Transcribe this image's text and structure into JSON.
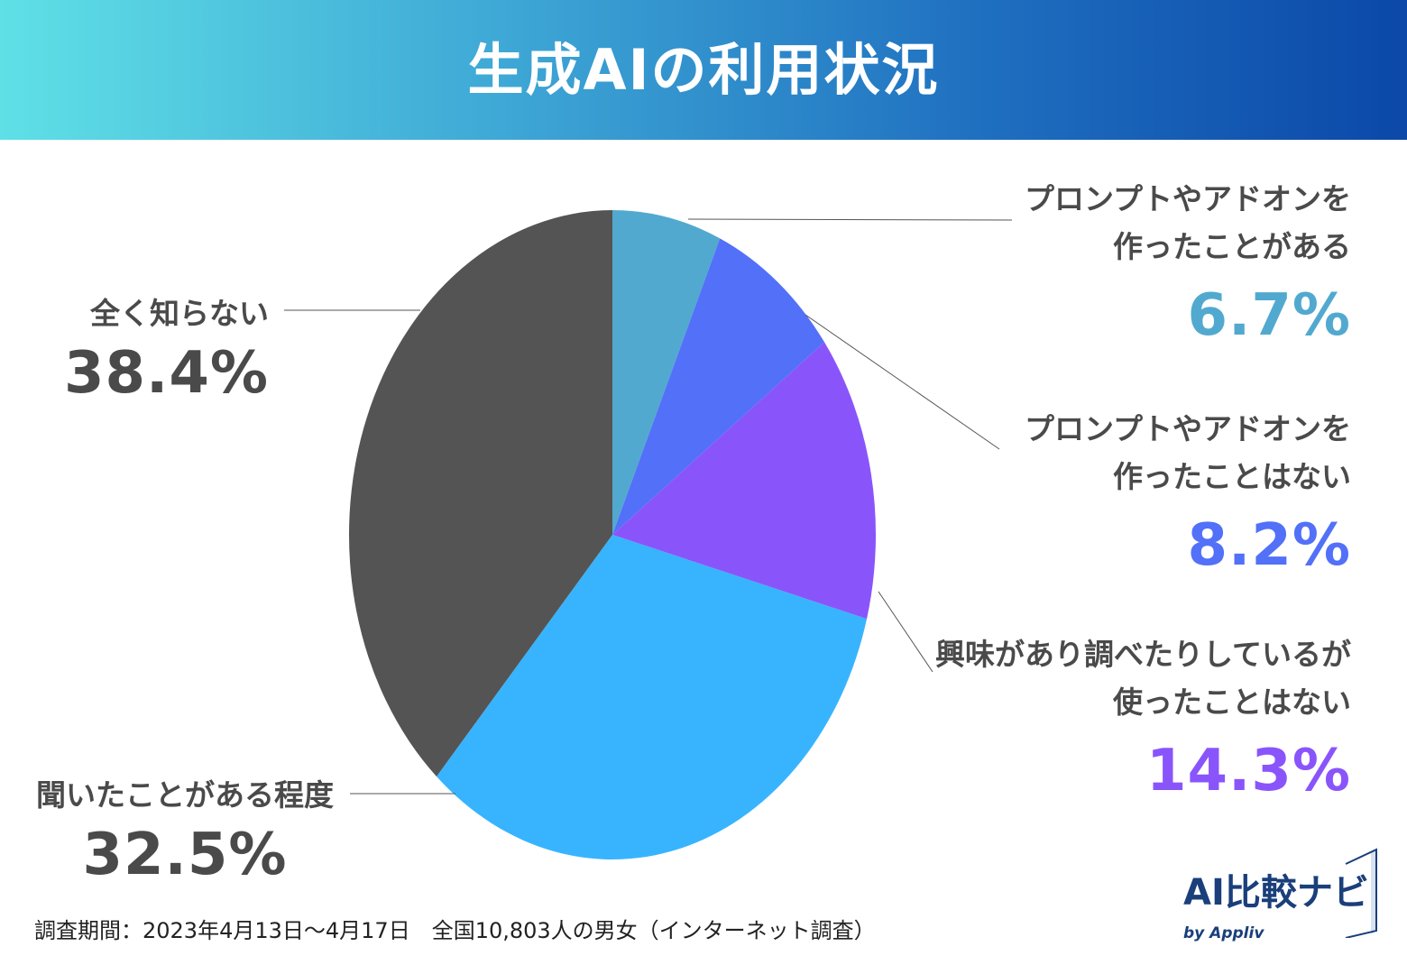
{
  "header": {
    "title": "生成AIの利用状況"
  },
  "chart_data": {
    "type": "pie",
    "title": "生成AIの利用状況",
    "start_angle_deg": 0,
    "direction": "clockwise",
    "slices": [
      {
        "label_lines": [
          "プロンプトやアドオンを",
          "作ったことがある"
        ],
        "value": 6.7,
        "pct_label": "6.7%",
        "color": "#52a9cf"
      },
      {
        "label_lines": [
          "プロンプトやアドオンを",
          "作ったことはない"
        ],
        "value": 8.2,
        "pct_label": "8.2%",
        "color": "#5270f8"
      },
      {
        "label_lines": [
          "興味があり調べたりしているが",
          "使ったことはない"
        ],
        "value": 14.3,
        "pct_label": "14.3%",
        "color": "#8955fb"
      },
      {
        "label_lines": [
          "聞いたことがある程度"
        ],
        "value": 32.5,
        "pct_label": "32.5%",
        "color": "#38b4fe"
      },
      {
        "label_lines": [
          "全く知らない"
        ],
        "value": 38.4,
        "pct_label": "38.4%",
        "color": "#545454"
      }
    ],
    "label_colors": [
      "#52a9cf",
      "#5270f8",
      "#8955fb",
      "#4a4a4a",
      "#4a4a4a"
    ]
  },
  "footnote": "調査期間：2023年4月13日〜4月17日　全国10,803人の男女（インターネット調査）",
  "logo": {
    "main": "AI比較ナビ",
    "sub": "by Appliv"
  }
}
